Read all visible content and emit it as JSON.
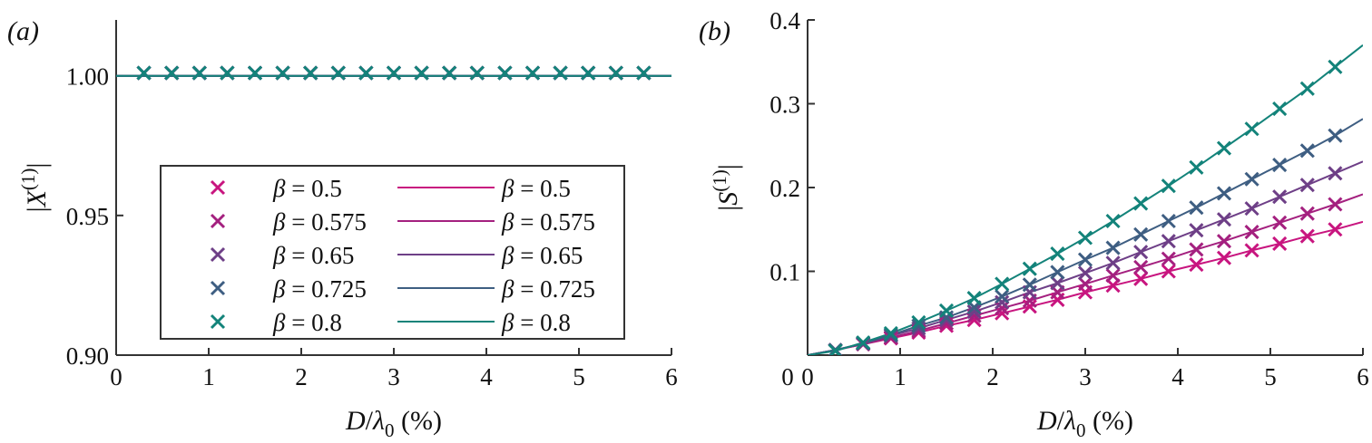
{
  "chart_data": [
    {
      "panel": "(a)",
      "type": "line",
      "title": "",
      "xlabel": "D/λ0 (%)",
      "ylabel": "|X(1)|",
      "xlim": [
        0,
        6
      ],
      "ylim": [
        0.9,
        1.02
      ],
      "xticks": [
        0,
        1,
        2,
        3,
        4,
        5,
        6
      ],
      "yticks": [
        0.9,
        0.95,
        1.0
      ],
      "ytick_labels": [
        "0.90",
        "0.95",
        "1.00"
      ],
      "grid": false,
      "legend_position": "lower center (inside axes)",
      "markers_x": [
        0.3,
        0.6,
        0.9,
        1.2,
        1.5,
        1.8,
        2.1,
        2.4,
        2.7,
        3.0,
        3.3,
        3.6,
        3.9,
        4.2,
        4.5,
        4.8,
        5.1,
        5.4,
        5.7
      ],
      "series": [
        {
          "name": "β = 0.5",
          "color": "#c8157f",
          "markers": [
            1.001,
            1.001,
            1.001,
            1.001,
            1.001,
            1.001,
            1.001,
            1.001,
            1.001,
            1.001,
            1.001,
            1.001,
            1.001,
            1.001,
            1.001,
            1.001,
            1.001,
            1.001,
            1.001
          ],
          "line": [
            [
              0,
              1.0
            ],
            [
              6,
              1.0
            ]
          ]
        },
        {
          "name": "β = 0.575",
          "color": "#a4207f",
          "markers": [
            1.001,
            1.001,
            1.001,
            1.001,
            1.001,
            1.001,
            1.001,
            1.001,
            1.001,
            1.001,
            1.001,
            1.001,
            1.001,
            1.001,
            1.001,
            1.001,
            1.001,
            1.001,
            1.001
          ],
          "line": [
            [
              0,
              1.0
            ],
            [
              6,
              1.0
            ]
          ]
        },
        {
          "name": "β = 0.65",
          "color": "#6e3f87",
          "markers": [
            1.001,
            1.001,
            1.001,
            1.001,
            1.001,
            1.001,
            1.001,
            1.001,
            1.001,
            1.001,
            1.001,
            1.001,
            1.001,
            1.001,
            1.001,
            1.001,
            1.001,
            1.001,
            1.001
          ],
          "line": [
            [
              0,
              1.0
            ],
            [
              6,
              1.0
            ]
          ]
        },
        {
          "name": "β = 0.725",
          "color": "#3e5e82",
          "markers": [
            1.001,
            1.001,
            1.001,
            1.001,
            1.001,
            1.001,
            1.001,
            1.001,
            1.001,
            1.001,
            1.001,
            1.001,
            1.001,
            1.001,
            1.001,
            1.001,
            1.001,
            1.001,
            1.001
          ],
          "line": [
            [
              0,
              1.0
            ],
            [
              6,
              1.0
            ]
          ]
        },
        {
          "name": "β = 0.8",
          "color": "#13837a",
          "markers": [
            1.001,
            1.001,
            1.001,
            1.001,
            1.001,
            1.001,
            1.001,
            1.001,
            1.001,
            1.001,
            1.001,
            1.001,
            1.001,
            1.001,
            1.001,
            1.001,
            1.001,
            1.001,
            1.001
          ],
          "line": [
            [
              0,
              1.0
            ],
            [
              6,
              1.0
            ]
          ]
        }
      ]
    },
    {
      "panel": "(b)",
      "type": "line",
      "title": "",
      "xlabel": "D/λ0 (%)",
      "ylabel": "|S(1)|",
      "xlim": [
        0,
        6
      ],
      "ylim": [
        0,
        0.4
      ],
      "xticks": [
        0,
        1,
        2,
        3,
        4,
        5,
        6
      ],
      "yticks": [
        0.1,
        0.2,
        0.3,
        0.4
      ],
      "ytick_labels": [
        "0.1",
        "0.2",
        "0.3",
        "0.4"
      ],
      "grid": false,
      "markers_x": [
        0.3,
        0.6,
        0.9,
        1.2,
        1.5,
        1.8,
        2.1,
        2.4,
        2.7,
        3.0,
        3.3,
        3.6,
        3.9,
        4.2,
        4.5,
        4.8,
        5.1,
        5.4,
        5.7
      ],
      "series": [
        {
          "name": "β = 0.5",
          "color": "#c8157f",
          "markers": [
            0.006,
            0.013,
            0.02,
            0.027,
            0.035,
            0.042,
            0.05,
            0.058,
            0.066,
            0.075,
            0.083,
            0.091,
            0.1,
            0.108,
            0.116,
            0.125,
            0.133,
            0.142,
            0.15
          ],
          "line_end": 0.159
        },
        {
          "name": "β = 0.575",
          "color": "#a4207f",
          "markers": [
            0.006,
            0.013,
            0.021,
            0.029,
            0.038,
            0.047,
            0.056,
            0.065,
            0.075,
            0.085,
            0.095,
            0.105,
            0.115,
            0.126,
            0.136,
            0.147,
            0.158,
            0.169,
            0.18
          ],
          "line_end": 0.192
        },
        {
          "name": "β = 0.65",
          "color": "#6e3f87",
          "markers": [
            0.006,
            0.014,
            0.023,
            0.032,
            0.042,
            0.052,
            0.063,
            0.075,
            0.086,
            0.098,
            0.11,
            0.123,
            0.136,
            0.149,
            0.162,
            0.175,
            0.189,
            0.203,
            0.217
          ],
          "line_end": 0.231
        },
        {
          "name": "β = 0.725",
          "color": "#3e5e82",
          "markers": [
            0.006,
            0.014,
            0.024,
            0.035,
            0.045,
            0.057,
            0.07,
            0.084,
            0.099,
            0.114,
            0.128,
            0.144,
            0.16,
            0.176,
            0.193,
            0.21,
            0.227,
            0.244,
            0.262
          ],
          "line_end": 0.282
        },
        {
          "name": "β = 0.8",
          "color": "#13837a",
          "markers": [
            0.005,
            0.015,
            0.026,
            0.039,
            0.053,
            0.068,
            0.085,
            0.103,
            0.121,
            0.14,
            0.16,
            0.181,
            0.202,
            0.224,
            0.247,
            0.27,
            0.294,
            0.318,
            0.344
          ],
          "line_end": 0.37
        }
      ]
    }
  ],
  "panels": {
    "a": {
      "label": "(a)",
      "ylabel_main": "|X",
      "ylabel_sup": "(1)",
      "ylabel_end": "|"
    },
    "b": {
      "label": "(b)",
      "ylabel_main": "|S",
      "ylabel_sup": "(1)",
      "ylabel_end": "|"
    }
  },
  "xlabel": {
    "D": "D",
    "slash": "/",
    "lambda": "λ",
    "sub": "0",
    "unit": " (%)"
  },
  "legend": {
    "marker_entries": [
      "β = 0.5",
      "β = 0.575",
      "β = 0.65",
      "β = 0.725",
      "β = 0.8"
    ],
    "line_entries": [
      "β = 0.5",
      "β = 0.575",
      "β = 0.65",
      "β = 0.725",
      "β = 0.8"
    ],
    "colors": [
      "#c8157f",
      "#a4207f",
      "#6e3f87",
      "#3e5e82",
      "#13837a"
    ]
  }
}
